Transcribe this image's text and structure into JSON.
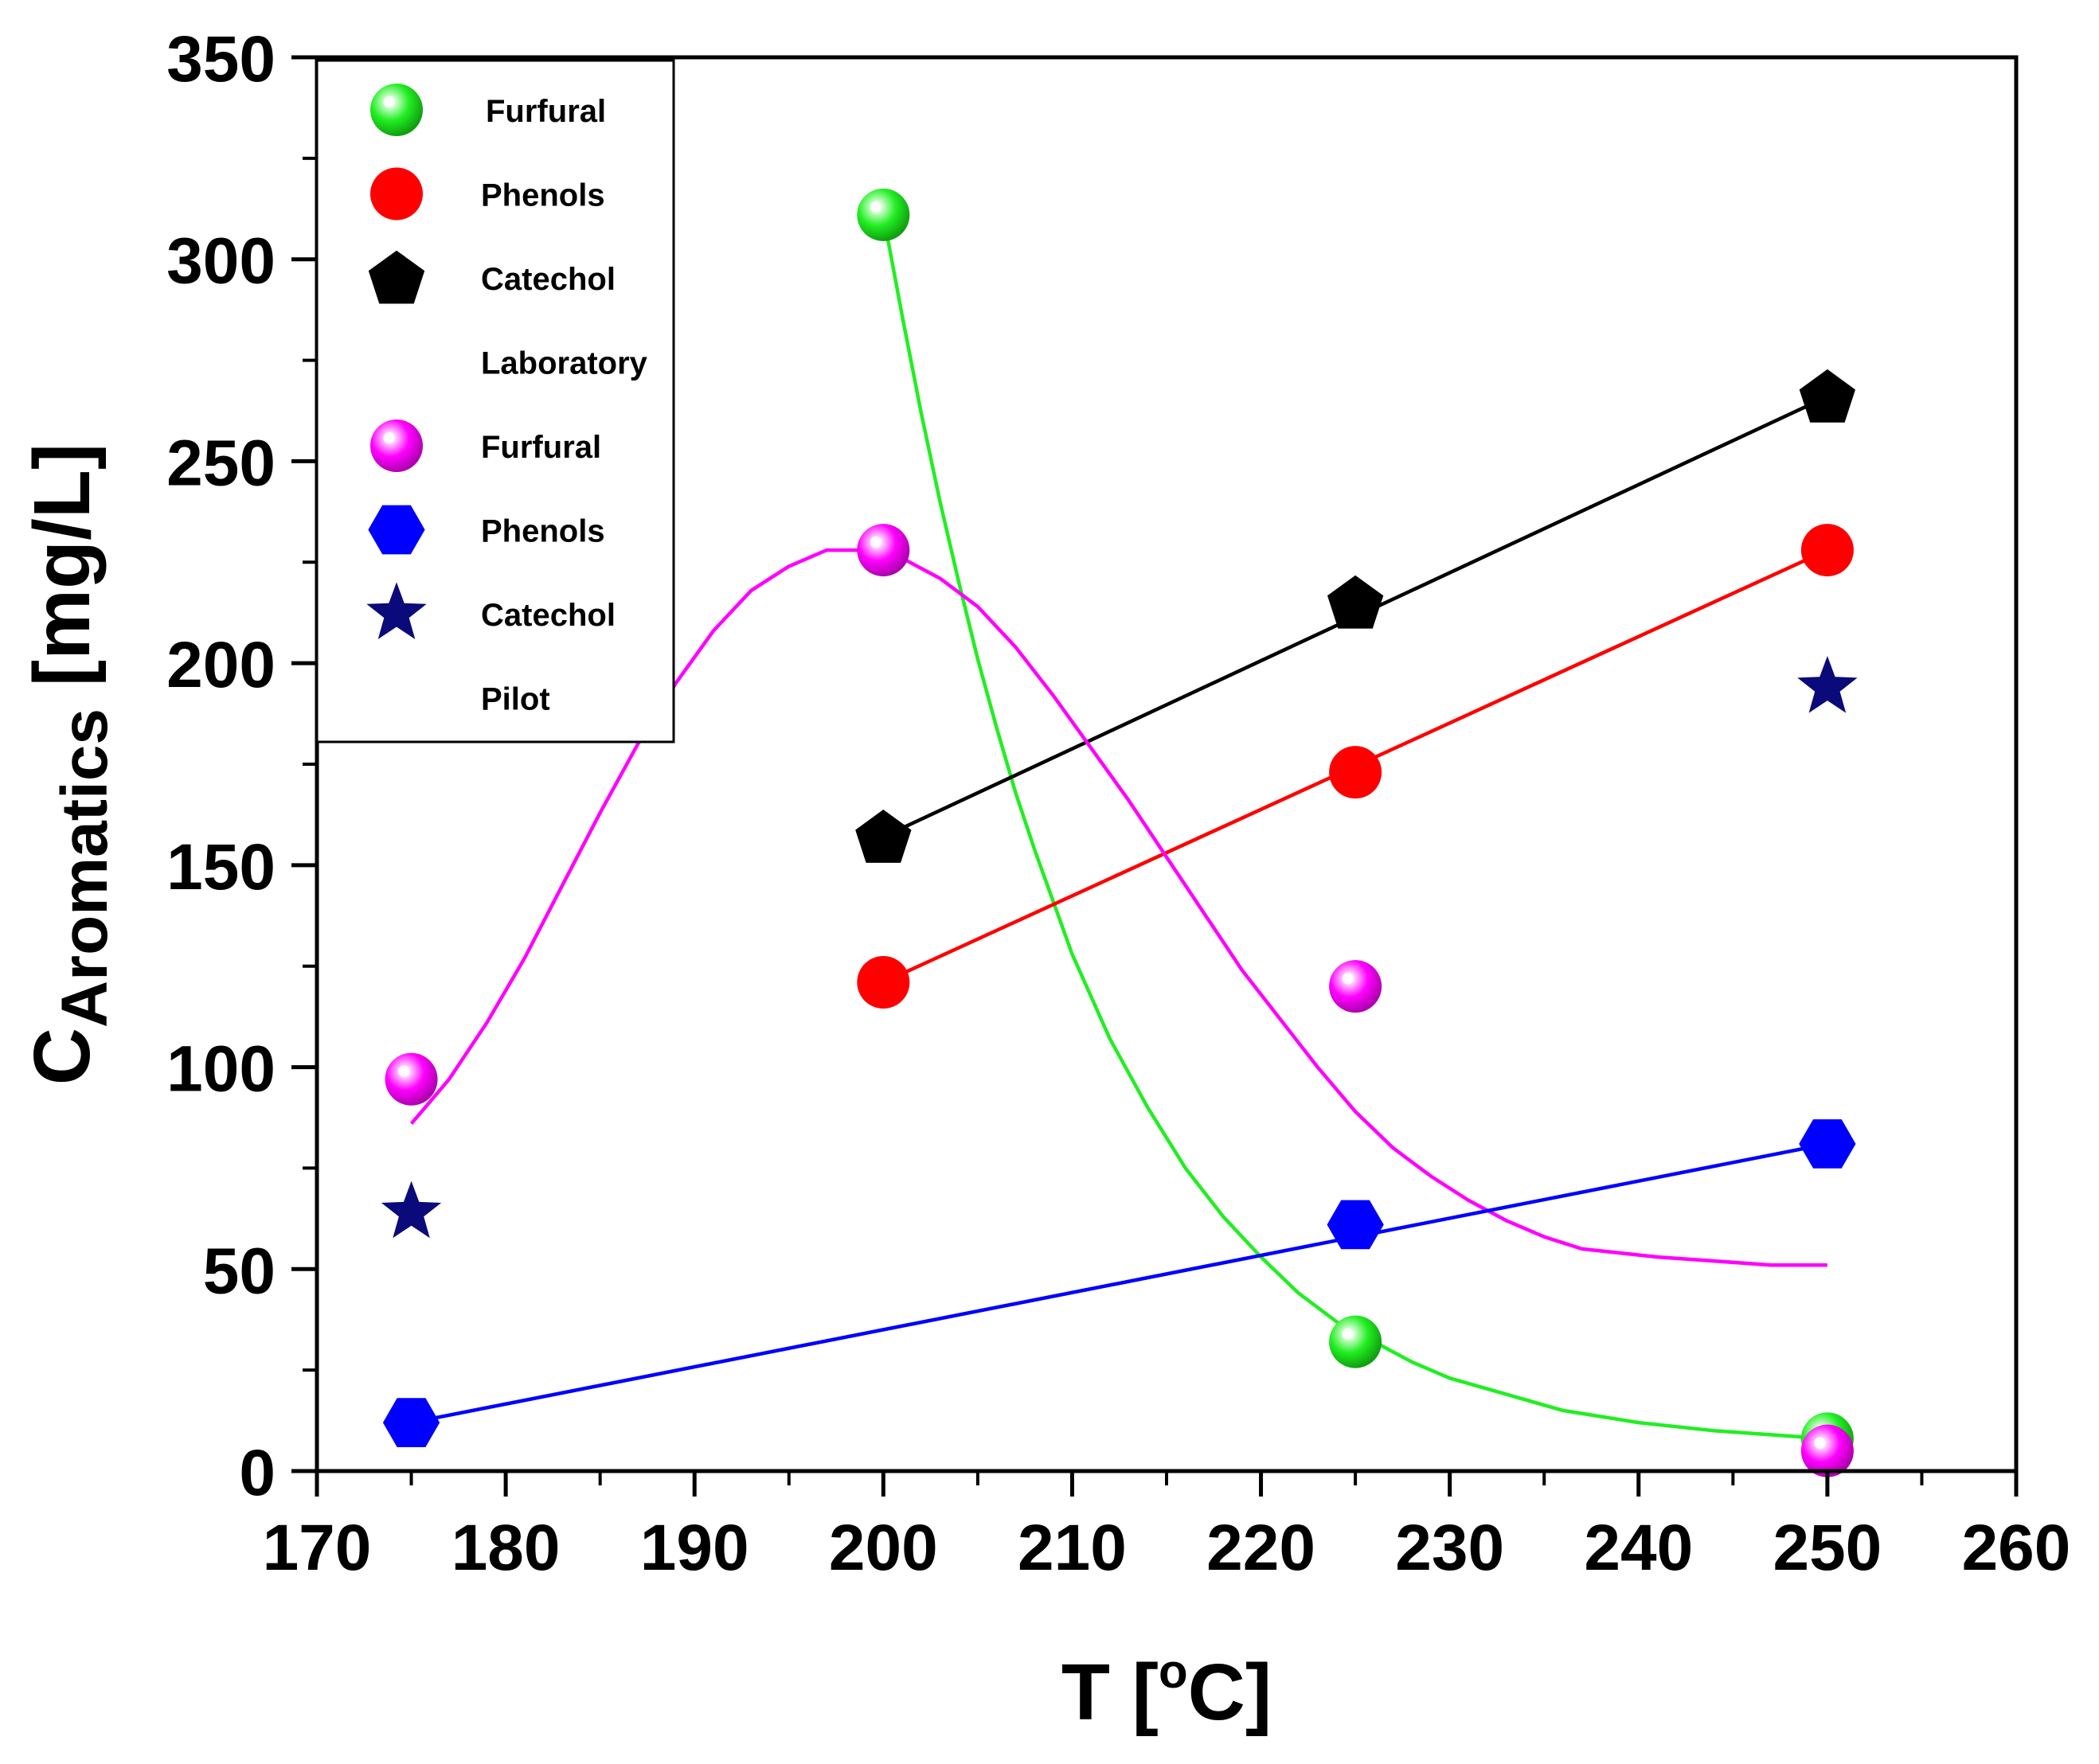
{
  "chart_data": {
    "type": "scatter",
    "xlabel": {
      "main": "T [",
      "sup": "o",
      "tail": "C]"
    },
    "ylabel": {
      "main": "C",
      "sub": "Aromatics",
      "tail": " [mg/L]"
    },
    "xlim": [
      170,
      260
    ],
    "ylim": [
      0,
      350
    ],
    "xticks": [
      170,
      180,
      190,
      200,
      210,
      220,
      230,
      240,
      250,
      260
    ],
    "yticks": [
      0,
      50,
      100,
      150,
      200,
      250,
      300,
      350
    ],
    "grid": false,
    "legend": {
      "position": "top-left",
      "entries": [
        {
          "label": "Furfural",
          "series": "lab_furfural"
        },
        {
          "label": "Phenols",
          "series": "lab_phenols"
        },
        {
          "label": "Catechol",
          "series": "lab_catechol"
        },
        {
          "label": "Laboratory",
          "series": null
        },
        {
          "label": "Furfural",
          "series": "pilot_furfural"
        },
        {
          "label": "Phenols",
          "series": "pilot_phenols"
        },
        {
          "label": "Catechol",
          "series": "pilot_catechol"
        },
        {
          "label": "Pilot",
          "series": null
        }
      ]
    },
    "series": [
      {
        "id": "lab_furfural",
        "name": "Furfural (Laboratory)",
        "marker": "sphere",
        "color": "#22ee22",
        "x": [
          200,
          225,
          250
        ],
        "y": [
          311,
          32,
          8
        ],
        "fit": [
          [
            200,
            311
          ],
          [
            201,
            286
          ],
          [
            202,
            262
          ],
          [
            203,
            240
          ],
          [
            204,
            220
          ],
          [
            205,
            201
          ],
          [
            206,
            184
          ],
          [
            207,
            168
          ],
          [
            208,
            154
          ],
          [
            210,
            128
          ],
          [
            212,
            107
          ],
          [
            214,
            90
          ],
          [
            216,
            75
          ],
          [
            218,
            63
          ],
          [
            220,
            53
          ],
          [
            222,
            44
          ],
          [
            224,
            37
          ],
          [
            226,
            32
          ],
          [
            228,
            27
          ],
          [
            230,
            23
          ],
          [
            233,
            19
          ],
          [
            236,
            15
          ],
          [
            240,
            12
          ],
          [
            244,
            10
          ],
          [
            250,
            8
          ]
        ]
      },
      {
        "id": "lab_phenols",
        "name": "Phenols (Laboratory)",
        "marker": "circle",
        "color": "#ff0000",
        "x": [
          200,
          225,
          250
        ],
        "y": [
          121,
          173,
          228
        ],
        "fit": [
          [
            200,
            121
          ],
          [
            250,
            228
          ]
        ]
      },
      {
        "id": "lab_catechol",
        "name": "Catechol (Laboratory)",
        "marker": "pentagon",
        "color": "#000000",
        "x": [
          200,
          225,
          250
        ],
        "y": [
          157,
          215,
          266
        ],
        "fit": [
          [
            200,
            157
          ],
          [
            250,
            266
          ]
        ]
      },
      {
        "id": "pilot_furfural",
        "name": "Furfural (Pilot)",
        "marker": "sphere",
        "color": "#ff00ff",
        "x": [
          175,
          200,
          225,
          250
        ],
        "y": [
          97,
          228,
          120,
          5
        ],
        "fit": [
          [
            175,
            86
          ],
          [
            177,
            97
          ],
          [
            179,
            111
          ],
          [
            181,
            127
          ],
          [
            183,
            145
          ],
          [
            185,
            163
          ],
          [
            187,
            180
          ],
          [
            189,
            195
          ],
          [
            191,
            208
          ],
          [
            193,
            218
          ],
          [
            195,
            224
          ],
          [
            197,
            228
          ],
          [
            199,
            228
          ],
          [
            201,
            226
          ],
          [
            203,
            221
          ],
          [
            205,
            214
          ],
          [
            207,
            204
          ],
          [
            209,
            192
          ],
          [
            211,
            179
          ],
          [
            213,
            166
          ],
          [
            215,
            152
          ],
          [
            217,
            138
          ],
          [
            219,
            124
          ],
          [
            221,
            112
          ],
          [
            223,
            100
          ],
          [
            225,
            89
          ],
          [
            227,
            80
          ],
          [
            229,
            73
          ],
          [
            231,
            67
          ],
          [
            233,
            62
          ],
          [
            235,
            58
          ],
          [
            237,
            55
          ],
          [
            239,
            54
          ],
          [
            241,
            53
          ],
          [
            244,
            52
          ],
          [
            247,
            51
          ],
          [
            250,
            51
          ]
        ]
      },
      {
        "id": "pilot_phenols",
        "name": "Phenols (Pilot)",
        "marker": "hexagon",
        "color": "#0000ff",
        "x": [
          175,
          225,
          250
        ],
        "y": [
          12,
          61,
          81
        ],
        "fit": [
          [
            175,
            12
          ],
          [
            250,
            81
          ]
        ]
      },
      {
        "id": "pilot_catechol",
        "name": "Catechol (Pilot)",
        "marker": "star",
        "color": "#0a0a7a",
        "x": [
          175,
          250
        ],
        "y": [
          64,
          194
        ],
        "fit": null
      }
    ]
  }
}
